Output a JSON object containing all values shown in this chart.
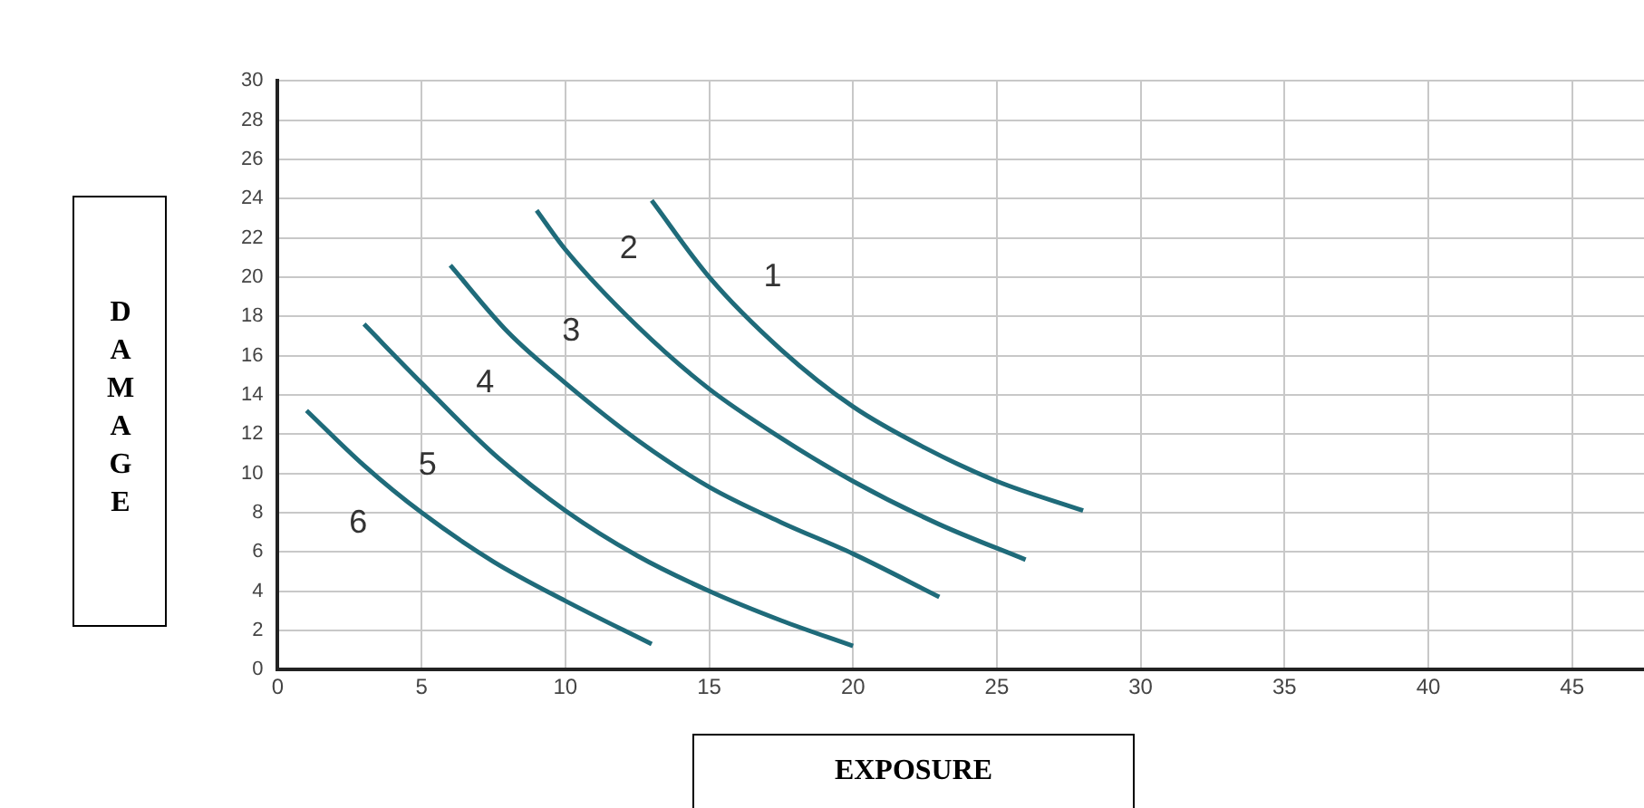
{
  "chart_data": {
    "type": "line",
    "xlabel": "EXPOSURE",
    "ylabel": "DAMAGE",
    "xlim": [
      0,
      47.5
    ],
    "xticks": [
      0,
      5,
      10,
      15,
      20,
      25,
      30,
      35,
      40,
      45
    ],
    "ylim": [
      0,
      30
    ],
    "yticks": [
      0,
      2,
      4,
      6,
      8,
      10,
      12,
      14,
      16,
      18,
      20,
      22,
      24,
      26,
      28,
      30
    ],
    "grid": true,
    "legend": false,
    "marker": "none",
    "line_style": "solid",
    "series": [
      {
        "color": "#1f6b7a",
        "x": [
          13,
          15,
          17.5,
          20,
          22.5,
          25,
          28
        ],
        "values": [
          23.9,
          20,
          16.3,
          13.4,
          11.3,
          9.6,
          8.1
        ]
      },
      {
        "color": "#1f6b7a",
        "x": [
          9,
          10,
          12.5,
          15,
          17.5,
          20,
          23,
          26
        ],
        "values": [
          23.4,
          21.4,
          17.5,
          14.3,
          11.8,
          9.6,
          7.4,
          5.6
        ]
      },
      {
        "color": "#1f6b7a",
        "x": [
          6,
          8,
          10,
          12.5,
          15,
          17.5,
          20,
          23
        ],
        "values": [
          20.6,
          17.2,
          14.6,
          11.7,
          9.3,
          7.5,
          5.9,
          3.7
        ]
      },
      {
        "color": "#1f6b7a",
        "x": [
          3,
          5,
          7.5,
          10,
          12.5,
          15,
          17.5,
          20
        ],
        "values": [
          17.6,
          14.6,
          11,
          8.1,
          5.8,
          4,
          2.5,
          1.2
        ]
      },
      {
        "color": "#1f6b7a",
        "x": [
          1,
          3,
          5,
          7.5,
          10,
          13
        ],
        "values": [
          13.2,
          10.4,
          8,
          5.5,
          3.5,
          1.3
        ]
      }
    ],
    "annotations": [
      "1",
      "2",
      "3",
      "4",
      "5",
      "6"
    ]
  }
}
